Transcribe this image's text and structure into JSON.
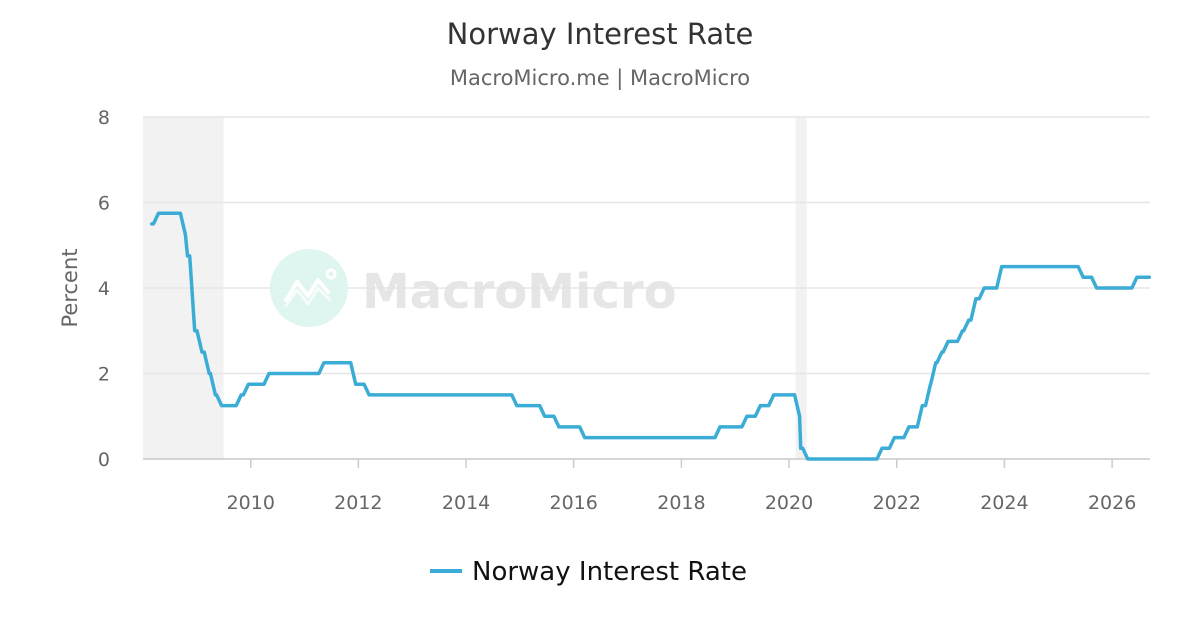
{
  "title": "Norway Interest Rate",
  "subtitle": "MacroMicro.me | MacroMicro",
  "watermark": {
    "text": "MacroMicro",
    "icon": "chart-line-logo-icon"
  },
  "chart_data": {
    "type": "line",
    "title": "Norway Interest Rate",
    "subtitle": "MacroMicro.me | MacroMicro",
    "xlabel": "",
    "ylabel": "Percent",
    "ylim": [
      0,
      8
    ],
    "xlim": [
      "2008-01-01",
      "2026-09-15"
    ],
    "y_ticks": [
      0,
      2,
      4,
      6,
      8
    ],
    "x_ticks": [
      "2010",
      "2012",
      "2014",
      "2016",
      "2018",
      "2020",
      "2022",
      "2024",
      "2026"
    ],
    "grid": true,
    "legend_position": "bottom",
    "shaded_periods": [
      [
        "2008-01-01",
        "2009-06-30"
      ],
      [
        "2020-02-15",
        "2020-04-30"
      ]
    ],
    "series": [
      {
        "name": "Norway Interest Rate",
        "color": "#3bacd6",
        "x": [
          "2008-03-01",
          "2008-04-15",
          "2008-06-25",
          "2008-10-15",
          "2008-10-29",
          "2008-12-17",
          "2009-02-04",
          "2009-03-25",
          "2009-05-06",
          "2009-06-17",
          "2009-10-28",
          "2009-12-16",
          "2010-05-05",
          "2011-05-12",
          "2011-12-14",
          "2012-03-14",
          "2014-12-11",
          "2015-06-18",
          "2015-09-23",
          "2016-03-16",
          "2018-09-20",
          "2019-03-21",
          "2019-06-20",
          "2019-09-19",
          "2020-03-13",
          "2020-03-20",
          "2020-05-07",
          "2021-09-23",
          "2021-12-16",
          "2022-03-24",
          "2022-06-23",
          "2022-08-18",
          "2022-09-22",
          "2022-11-03",
          "2022-12-15",
          "2023-03-23",
          "2023-05-04",
          "2023-06-22",
          "2023-08-17",
          "2023-12-14",
          "2025-06-19",
          "2025-09-18",
          "2026-06-18",
          "2026-09-10"
        ],
        "values": [
          5.5,
          5.75,
          5.75,
          5.25,
          4.75,
          3.0,
          2.5,
          2.0,
          1.5,
          1.25,
          1.5,
          1.75,
          2.0,
          2.25,
          1.75,
          1.5,
          1.25,
          1.0,
          0.75,
          0.5,
          0.75,
          1.0,
          1.25,
          1.5,
          1.0,
          0.25,
          0.0,
          0.25,
          0.5,
          0.75,
          1.25,
          1.75,
          2.25,
          2.5,
          2.75,
          3.0,
          3.25,
          3.75,
          4.0,
          4.5,
          4.25,
          4.0,
          4.25,
          4.25
        ]
      }
    ]
  }
}
